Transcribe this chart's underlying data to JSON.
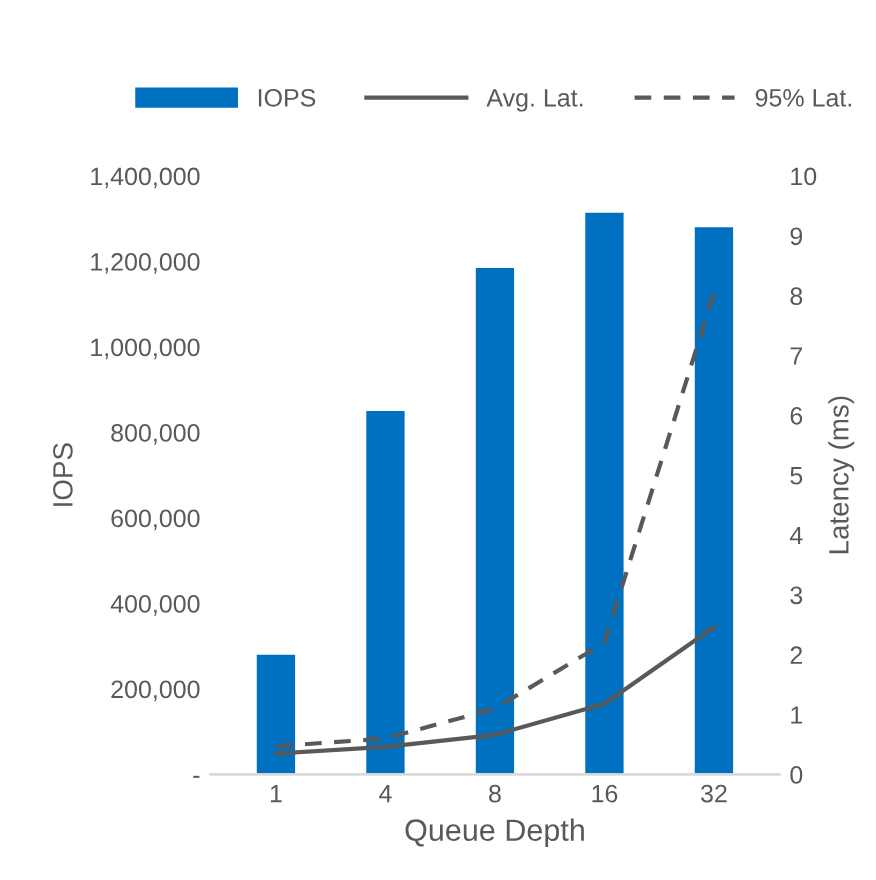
{
  "chart_data": {
    "type": "bar",
    "xlabel": "Queue Depth",
    "ylabel": "IOPS",
    "y2label": "Latency (ms)",
    "categories": [
      "1",
      "4",
      "8",
      "16",
      "32"
    ],
    "series": [
      {
        "name": "IOPS",
        "color": "#0070c0",
        "values": [
          280000,
          850000,
          1185000,
          1314000,
          1280000
        ]
      },
      {
        "name": "Avg. Lat.",
        "type": "line",
        "axis": "y2",
        "color": "#595959",
        "line_style": "solid",
        "values": [
          0.35,
          0.46,
          0.66,
          1.18,
          2.46
        ]
      },
      {
        "name": "95% Lat.",
        "type": "line",
        "axis": "y2",
        "color": "#595959",
        "line_style": "dashed",
        "values": [
          0.47,
          0.6,
          1.1,
          2.2,
          8.05
        ]
      }
    ],
    "ylim": [
      0,
      1400000
    ],
    "yticks": [
      {
        "value": 0,
        "label": "-"
      },
      {
        "value": 200000,
        "label": "200,000"
      },
      {
        "value": 400000,
        "label": "400,000"
      },
      {
        "value": 600000,
        "label": "600,000"
      },
      {
        "value": 800000,
        "label": "800,000"
      },
      {
        "value": 1000000,
        "label": "1,000,000"
      },
      {
        "value": 1200000,
        "label": "1,200,000"
      },
      {
        "value": 1400000,
        "label": "1,400,000"
      }
    ],
    "y2lim": [
      0,
      10
    ],
    "y2ticks": [
      0,
      1,
      2,
      3,
      4,
      5,
      6,
      7,
      8,
      9,
      10
    ],
    "grid": false,
    "legend": "top"
  }
}
